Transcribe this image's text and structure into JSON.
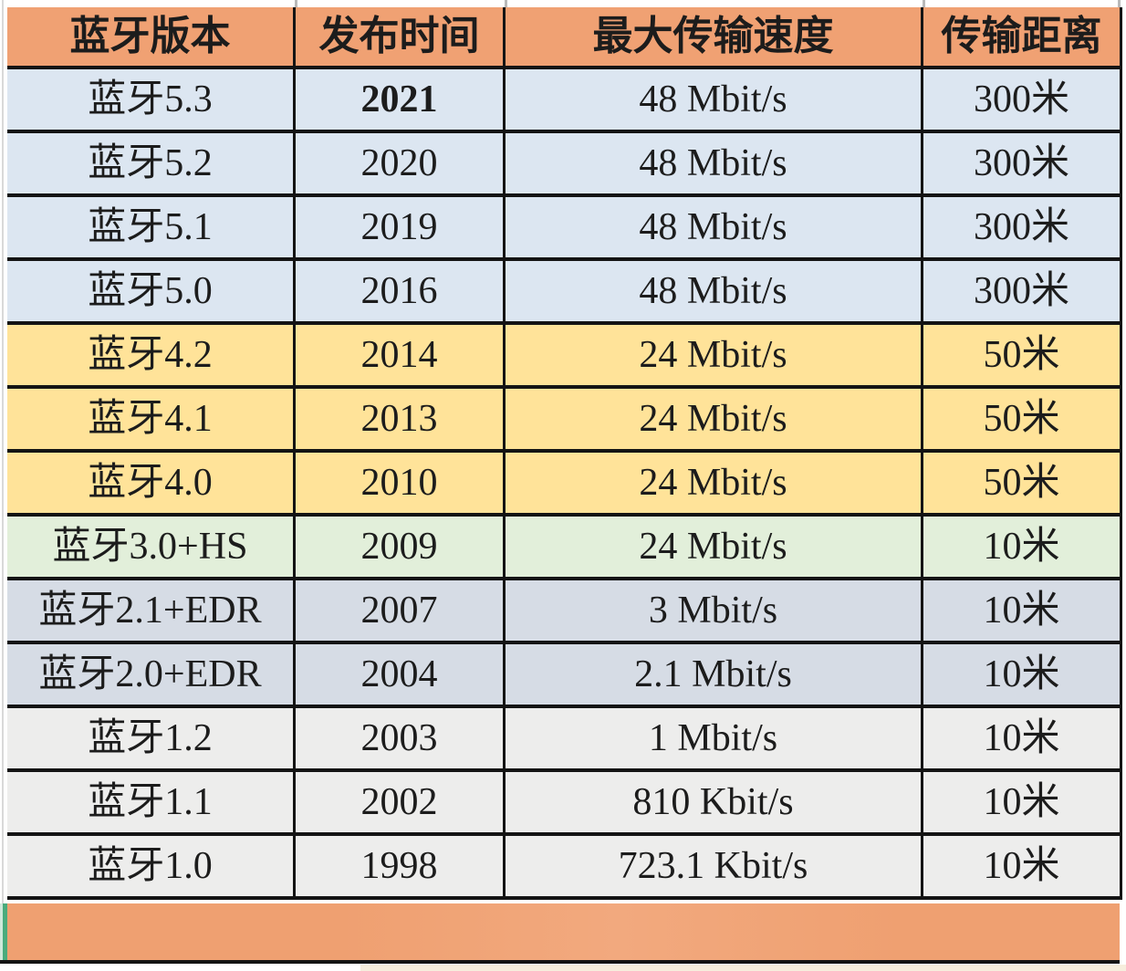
{
  "colors": {
    "header_bg": "#f0a173",
    "row_blue": "#dce6f1",
    "row_yellow": "#ffe399",
    "row_green": "#e2efda",
    "row_grayblue": "#d6dce5",
    "row_gray": "#ededec",
    "border_dark": "#141414",
    "text": "#1c1c1c",
    "footer_bar": "#efa071",
    "footer_edge_green": "#4aab7c",
    "footer_edge_mint": "#cfe8da",
    "bottom_strip_cream": "#f6eedd"
  },
  "table": {
    "headers": [
      "蓝牙版本",
      "发布时间",
      "最大传输速度",
      "传输距离"
    ],
    "rows": [
      {
        "version": "蓝牙5.3",
        "year": "2021",
        "speed": "48 Mbit/s",
        "distance": "300米",
        "group": "blue",
        "year_bold": true
      },
      {
        "version": "蓝牙5.2",
        "year": "2020",
        "speed": "48 Mbit/s",
        "distance": "300米",
        "group": "blue",
        "year_bold": false
      },
      {
        "version": "蓝牙5.1",
        "year": "2019",
        "speed": "48 Mbit/s",
        "distance": "300米",
        "group": "blue",
        "year_bold": false
      },
      {
        "version": "蓝牙5.0",
        "year": "2016",
        "speed": "48 Mbit/s",
        "distance": "300米",
        "group": "blue",
        "year_bold": false
      },
      {
        "version": "蓝牙4.2",
        "year": "2014",
        "speed": "24 Mbit/s",
        "distance": "50米",
        "group": "yellow",
        "year_bold": false
      },
      {
        "version": "蓝牙4.1",
        "year": "2013",
        "speed": "24 Mbit/s",
        "distance": "50米",
        "group": "yellow",
        "year_bold": false
      },
      {
        "version": "蓝牙4.0",
        "year": "2010",
        "speed": "24 Mbit/s",
        "distance": "50米",
        "group": "yellow",
        "year_bold": false
      },
      {
        "version": "蓝牙3.0+HS",
        "year": "2009",
        "speed": "24 Mbit/s",
        "distance": "10米",
        "group": "green",
        "year_bold": false
      },
      {
        "version": "蓝牙2.1+EDR",
        "year": "2007",
        "speed": "3 Mbit/s",
        "distance": "10米",
        "group": "grayblue",
        "year_bold": false
      },
      {
        "version": "蓝牙2.0+EDR",
        "year": "2004",
        "speed": "2.1 Mbit/s",
        "distance": "10米",
        "group": "grayblue",
        "year_bold": false
      },
      {
        "version": "蓝牙1.2",
        "year": "2003",
        "speed": "1 Mbit/s",
        "distance": "10米",
        "group": "gray",
        "year_bold": false
      },
      {
        "version": "蓝牙1.1",
        "year": "2002",
        "speed": "810 Kbit/s",
        "distance": "10米",
        "group": "gray",
        "year_bold": false
      },
      {
        "version": "蓝牙1.0",
        "year": "1998",
        "speed": "723.1 Kbit/s",
        "distance": "10米",
        "group": "gray",
        "year_bold": false
      }
    ]
  },
  "chart_data": {
    "type": "table",
    "columns": [
      "蓝牙版本",
      "发布时间",
      "最大传输速度",
      "传输距离"
    ],
    "rows": [
      [
        "蓝牙5.3",
        "2021",
        "48 Mbit/s",
        "300米"
      ],
      [
        "蓝牙5.2",
        "2020",
        "48 Mbit/s",
        "300米"
      ],
      [
        "蓝牙5.1",
        "2019",
        "48 Mbit/s",
        "300米"
      ],
      [
        "蓝牙5.0",
        "2016",
        "48 Mbit/s",
        "300米"
      ],
      [
        "蓝牙4.2",
        "2014",
        "24 Mbit/s",
        "50米"
      ],
      [
        "蓝牙4.1",
        "2013",
        "24 Mbit/s",
        "50米"
      ],
      [
        "蓝牙4.0",
        "2010",
        "24 Mbit/s",
        "50米"
      ],
      [
        "蓝牙3.0+HS",
        "2009",
        "24 Mbit/s",
        "10米"
      ],
      [
        "蓝牙2.1+EDR",
        "2007",
        "3 Mbit/s",
        "10米"
      ],
      [
        "蓝牙2.0+EDR",
        "2004",
        "2.1 Mbit/s",
        "10米"
      ],
      [
        "蓝牙1.2",
        "2003",
        "1 Mbit/s",
        "10米"
      ],
      [
        "蓝牙1.1",
        "2002",
        "810 Kbit/s",
        "10米"
      ],
      [
        "蓝牙1.0",
        "1998",
        "723.1 Kbit/s",
        "10米"
      ]
    ],
    "row_group_colors": {
      "blue": "#dce6f1",
      "yellow": "#ffe399",
      "green": "#e2efda",
      "grayblue": "#d6dce5",
      "gray": "#ededec"
    }
  }
}
